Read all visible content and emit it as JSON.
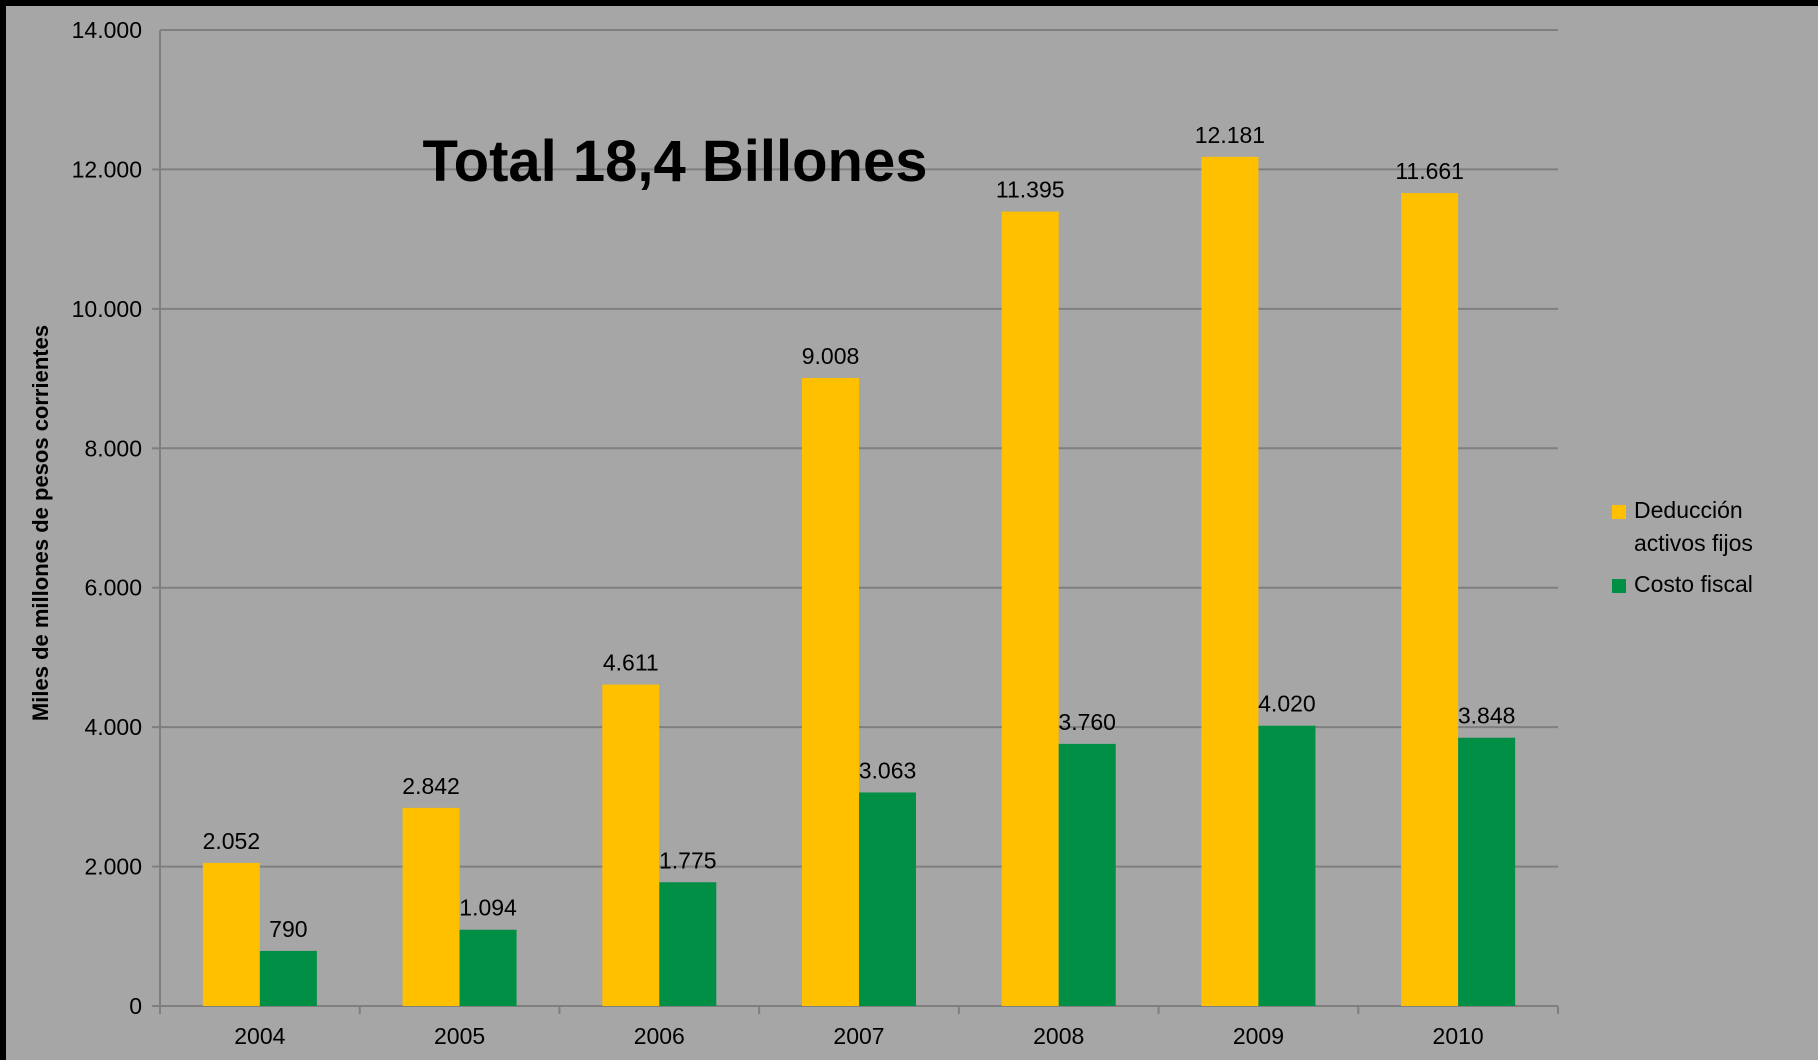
{
  "chart_data": {
    "type": "bar",
    "categories": [
      "2004",
      "2005",
      "2006",
      "2007",
      "2008",
      "2009",
      "2010"
    ],
    "series": [
      {
        "name": "Deducción activos fijos",
        "name_lines": [
          "Deducción",
          "activos fijos"
        ],
        "color": "#ffc000",
        "values": [
          2052,
          2842,
          4611,
          9008,
          11395,
          12181,
          11661
        ],
        "labels": [
          "2.052",
          "2.842",
          "4.611",
          "9.008",
          "11.395",
          "12.181",
          "11.661"
        ]
      },
      {
        "name": "Costo fiscal",
        "name_lines": [
          "Costo fiscal"
        ],
        "color": "#008f45",
        "values": [
          790,
          1094,
          1775,
          3063,
          3760,
          4020,
          3848
        ],
        "labels": [
          "790",
          "1.094",
          "1.775",
          "3.063",
          "3.760",
          "4.020",
          "3.848"
        ]
      }
    ],
    "title": "",
    "annotation": "Total 18,4 Billones",
    "xlabel": "",
    "ylabel": "Miles de millones de pesos corrientes",
    "ylim": [
      0,
      14000
    ],
    "yticks": [
      0,
      2000,
      4000,
      6000,
      8000,
      10000,
      12000,
      14000
    ],
    "ytick_labels": [
      "0",
      "2.000",
      "4.000",
      "6.000",
      "8.000",
      "10.000",
      "12.000",
      "14.000"
    ],
    "grid": true,
    "legend_position": "right",
    "background": "#a6a6a6"
  }
}
